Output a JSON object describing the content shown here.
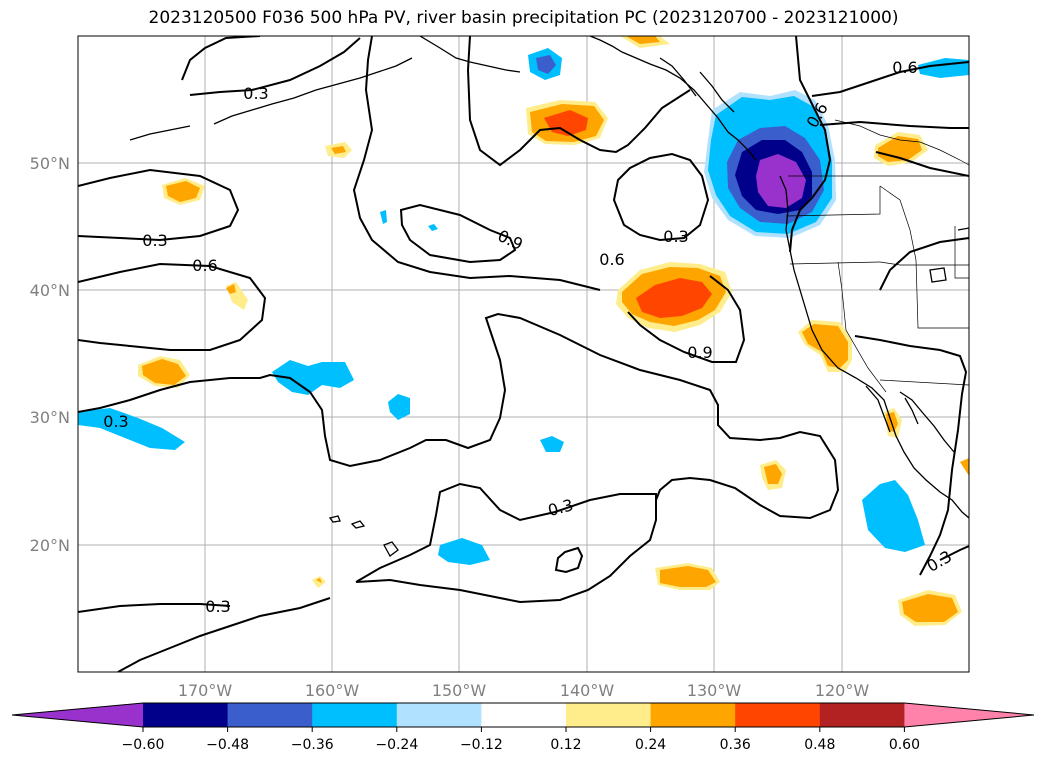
{
  "title": "2023120500 F036 500 hPa PV, river basin precipitation PC (2023120700 - 2023121000)",
  "lat_labels": [
    "50°N",
    "40°N",
    "30°N",
    "20°N"
  ],
  "lon_labels": [
    "170°W",
    "160°W",
    "150°W",
    "140°W",
    "130°W",
    "120°W"
  ],
  "contour_labels": [
    "0.3",
    "0.3",
    "0.6",
    "0.3",
    "0.9",
    "0.6",
    "0.3",
    "0.9",
    "0.6",
    "0.6",
    "0.3",
    "0.3",
    "0.3"
  ],
  "colorbar": {
    "ticks": [
      "−0.60",
      "−0.48",
      "−0.36",
      "−0.24",
      "−0.12",
      "0.12",
      "0.24",
      "0.36",
      "0.48",
      "0.60"
    ],
    "colors": [
      "#9932cc",
      "#00008b",
      "#3a5fcd",
      "#00bfff",
      "#b0e2ff",
      "#ffffff",
      "#ffec8b",
      "#ffa500",
      "#ff4500",
      "#b22222",
      "#ff82ab"
    ]
  }
}
